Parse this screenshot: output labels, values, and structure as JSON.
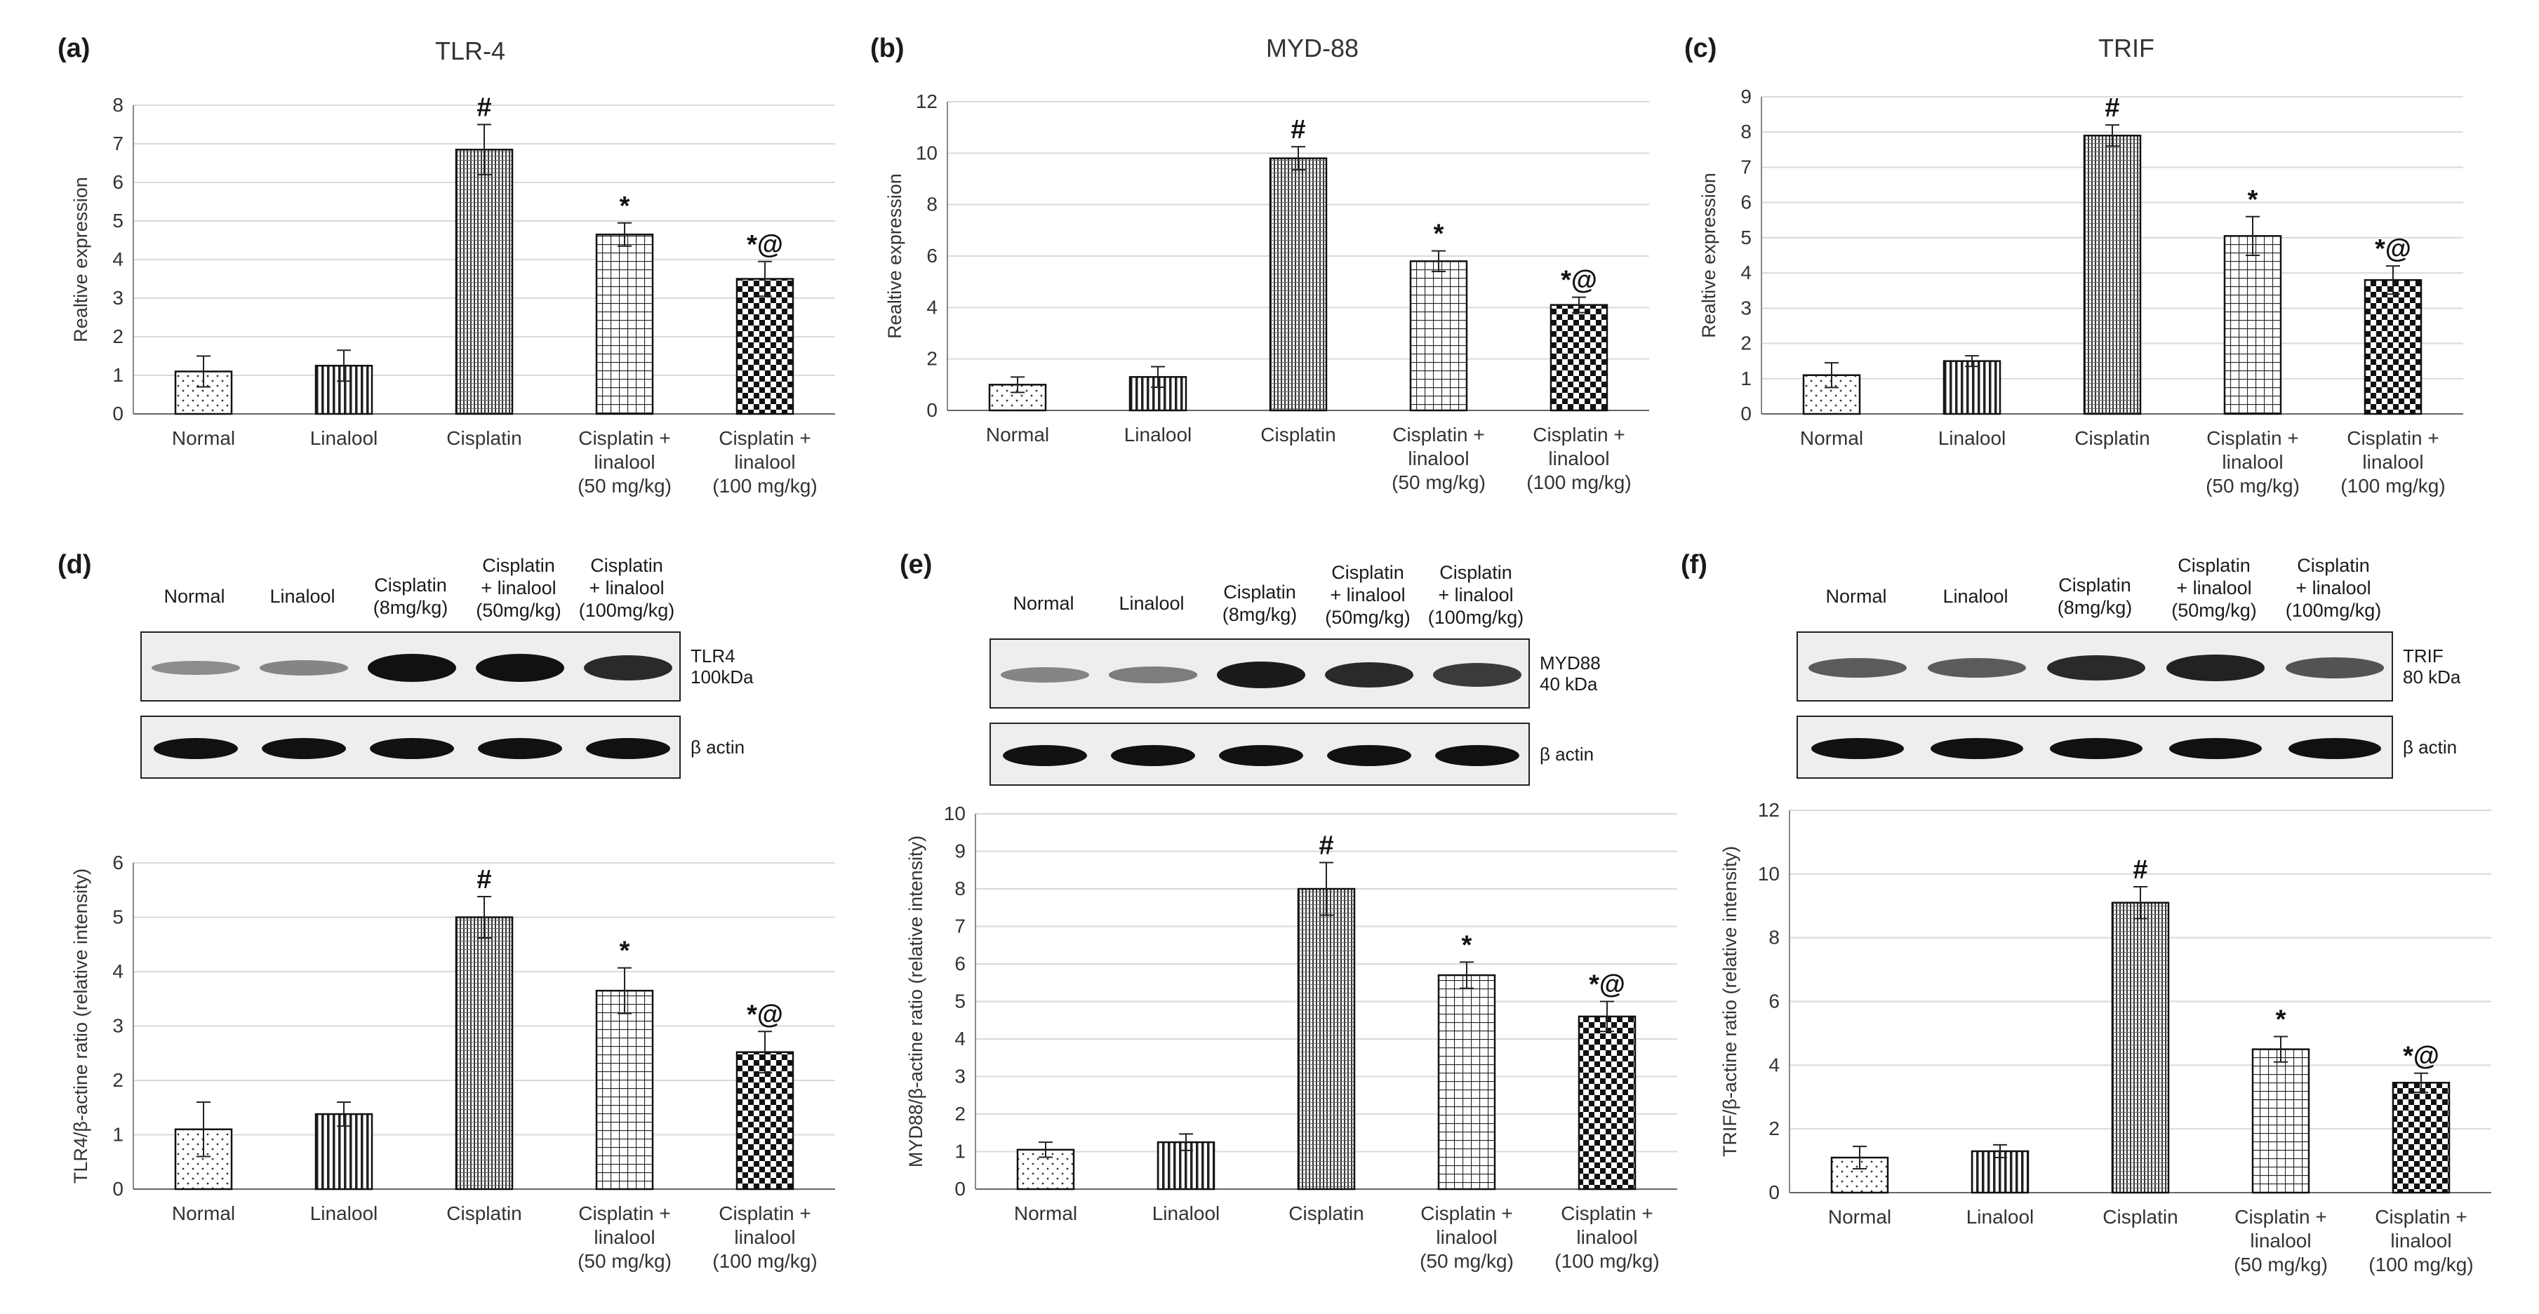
{
  "panels": {
    "a": {
      "label": "(a)",
      "title": "TLR-4"
    },
    "b": {
      "label": "(b)",
      "title": "MYD-88"
    },
    "c": {
      "label": "(c)",
      "title": "TRIF"
    },
    "d": {
      "label": "(d)"
    },
    "e": {
      "label": "(e)"
    },
    "f": {
      "label": "(f)"
    }
  },
  "colors": {
    "bar_stroke": "#111111",
    "grid": "#d9d9d9",
    "axis_text": "#333333"
  },
  "blots": [
    {
      "headers": [
        [
          "Normal"
        ],
        [
          "Linalool"
        ],
        [
          "Cisplatin",
          "(8mg/kg)"
        ],
        [
          "Cisplatin",
          "+ linalool",
          "(50mg/kg)"
        ],
        [
          "Cisplatin",
          "+ linalool",
          "(100mg/kg)"
        ]
      ],
      "protein_label": [
        "TLR4",
        "100kDa"
      ],
      "actin_label": "β actin",
      "protein_intensity": [
        0.25,
        0.3,
        1.0,
        1.0,
        0.85
      ]
    },
    {
      "headers": [
        [
          "Normal"
        ],
        [
          "Linalool"
        ],
        [
          "Cisplatin",
          "(8mg/kg)"
        ],
        [
          "Cisplatin",
          "+ linalool",
          "(50mg/kg)"
        ],
        [
          "Cisplatin",
          "+ linalool",
          "(100mg/kg)"
        ]
      ],
      "protein_label": [
        "MYD88",
        "40 kDa"
      ],
      "actin_label": "β actin",
      "protein_intensity": [
        0.3,
        0.35,
        0.95,
        0.85,
        0.75
      ]
    },
    {
      "headers": [
        [
          "Normal"
        ],
        [
          "Linalool"
        ],
        [
          "Cisplatin",
          "(8mg/kg)"
        ],
        [
          "Cisplatin",
          "+ linalool",
          "(50mg/kg)"
        ],
        [
          "Cisplatin",
          "+ linalool",
          "(100mg/kg)"
        ]
      ],
      "protein_label": [
        "TRIF",
        "80 kDa"
      ],
      "actin_label": "β actin",
      "protein_intensity": [
        0.55,
        0.55,
        0.85,
        0.9,
        0.6
      ]
    }
  ],
  "chart_data": [
    {
      "type": "bar",
      "title": "TLR-4",
      "ylabel": "Realtive expression",
      "xlabel": "",
      "categories": [
        [
          "Normal"
        ],
        [
          "Linalool"
        ],
        [
          "Cisplatin"
        ],
        [
          "Cisplatin +",
          "linalool",
          "(50 mg/kg)"
        ],
        [
          "Cisplatin +",
          "linalool",
          "(100 mg/kg)"
        ]
      ],
      "values": [
        1.1,
        1.25,
        6.85,
        4.65,
        3.5
      ],
      "errors": [
        0.4,
        0.4,
        0.65,
        0.3,
        0.45
      ],
      "annotations": [
        "",
        "",
        "#",
        "*",
        "*@"
      ],
      "patterns": [
        "dots",
        "vlines",
        "vfine",
        "grid",
        "checker"
      ],
      "ylim": [
        0,
        8
      ],
      "yticks": [
        0,
        1,
        2,
        3,
        4,
        5,
        6,
        7,
        8
      ],
      "grid": true
    },
    {
      "type": "bar",
      "title": "MYD-88",
      "ylabel": "Realtive expression",
      "xlabel": "",
      "categories": [
        [
          "Normal"
        ],
        [
          "Linalool"
        ],
        [
          "Cisplatin"
        ],
        [
          "Cisplatin +",
          "linalool",
          "(50 mg/kg)"
        ],
        [
          "Cisplatin +",
          "linalool",
          "(100 mg/kg)"
        ]
      ],
      "values": [
        1.0,
        1.3,
        9.8,
        5.8,
        4.1
      ],
      "errors": [
        0.3,
        0.4,
        0.45,
        0.4,
        0.3
      ],
      "annotations": [
        "",
        "",
        "#",
        "*",
        "*@"
      ],
      "patterns": [
        "dots",
        "vlines",
        "vfine",
        "grid",
        "checker"
      ],
      "ylim": [
        0,
        12
      ],
      "yticks": [
        0,
        2,
        4,
        6,
        8,
        10,
        12
      ],
      "grid": true
    },
    {
      "type": "bar",
      "title": "TRIF",
      "ylabel": "Realtive expression",
      "xlabel": "",
      "categories": [
        [
          "Normal"
        ],
        [
          "Linalool"
        ],
        [
          "Cisplatin"
        ],
        [
          "Cisplatin +",
          "linalool",
          "(50 mg/kg)"
        ],
        [
          "Cisplatin +",
          "linalool",
          "(100 mg/kg)"
        ]
      ],
      "values": [
        1.1,
        1.5,
        7.9,
        5.05,
        3.8
      ],
      "errors": [
        0.35,
        0.15,
        0.3,
        0.55,
        0.4
      ],
      "annotations": [
        "",
        "",
        "#",
        "*",
        "*@"
      ],
      "patterns": [
        "dots",
        "vlines",
        "vfine",
        "grid",
        "checker"
      ],
      "ylim": [
        0,
        9
      ],
      "yticks": [
        0,
        1,
        2,
        3,
        4,
        5,
        6,
        7,
        8,
        9
      ],
      "grid": true
    },
    {
      "type": "bar",
      "title": "",
      "ylabel": "TLR4/β-actine ratio (relative intensity)",
      "xlabel": "",
      "categories": [
        [
          "Normal"
        ],
        [
          "Linalool"
        ],
        [
          "Cisplatin"
        ],
        [
          "Cisplatin +",
          "linalool",
          "(50 mg/kg)"
        ],
        [
          "Cisplatin +",
          "linalool",
          "(100 mg/kg)"
        ]
      ],
      "values": [
        1.1,
        1.38,
        5.0,
        3.65,
        2.52
      ],
      "errors": [
        0.5,
        0.22,
        0.38,
        0.42,
        0.38
      ],
      "annotations": [
        "",
        "",
        "#",
        "*",
        "*@"
      ],
      "patterns": [
        "dots",
        "vlines",
        "vfine",
        "grid",
        "checker"
      ],
      "ylim": [
        0,
        6
      ],
      "yticks": [
        0,
        1,
        2,
        3,
        4,
        5,
        6
      ],
      "grid": true
    },
    {
      "type": "bar",
      "title": "",
      "ylabel": "MYD88/β-actine ratio (relative intensity)",
      "xlabel": "",
      "categories": [
        [
          "Normal"
        ],
        [
          "Linalool"
        ],
        [
          "Cisplatin"
        ],
        [
          "Cisplatin +",
          "linalool",
          "(50 mg/kg)"
        ],
        [
          "Cisplatin +",
          "linalool",
          "(100 mg/kg)"
        ]
      ],
      "values": [
        1.05,
        1.25,
        8.0,
        5.7,
        4.6
      ],
      "errors": [
        0.2,
        0.22,
        0.7,
        0.35,
        0.4
      ],
      "annotations": [
        "",
        "",
        "#",
        "*",
        "*@"
      ],
      "patterns": [
        "dots",
        "vlines",
        "vfine",
        "grid",
        "checker"
      ],
      "ylim": [
        0,
        10
      ],
      "yticks": [
        0,
        1,
        2,
        3,
        4,
        5,
        6,
        7,
        8,
        9,
        10
      ],
      "grid": true
    },
    {
      "type": "bar",
      "title": "",
      "ylabel": "TRIF/β-actine ratio (relative intensity)",
      "xlabel": "",
      "categories": [
        [
          "Normal"
        ],
        [
          "Linalool"
        ],
        [
          "Cisplatin"
        ],
        [
          "Cisplatin +",
          "linalool",
          "(50 mg/kg)"
        ],
        [
          "Cisplatin +",
          "linalool",
          "(100 mg/kg)"
        ]
      ],
      "values": [
        1.1,
        1.3,
        9.1,
        4.5,
        3.45
      ],
      "errors": [
        0.35,
        0.2,
        0.5,
        0.4,
        0.3
      ],
      "annotations": [
        "",
        "",
        "#",
        "*",
        "*@"
      ],
      "patterns": [
        "dots",
        "vlines",
        "vfine",
        "grid",
        "checker"
      ],
      "ylim": [
        0,
        12
      ],
      "yticks": [
        0,
        2,
        4,
        6,
        8,
        10,
        12
      ],
      "grid": true
    }
  ]
}
